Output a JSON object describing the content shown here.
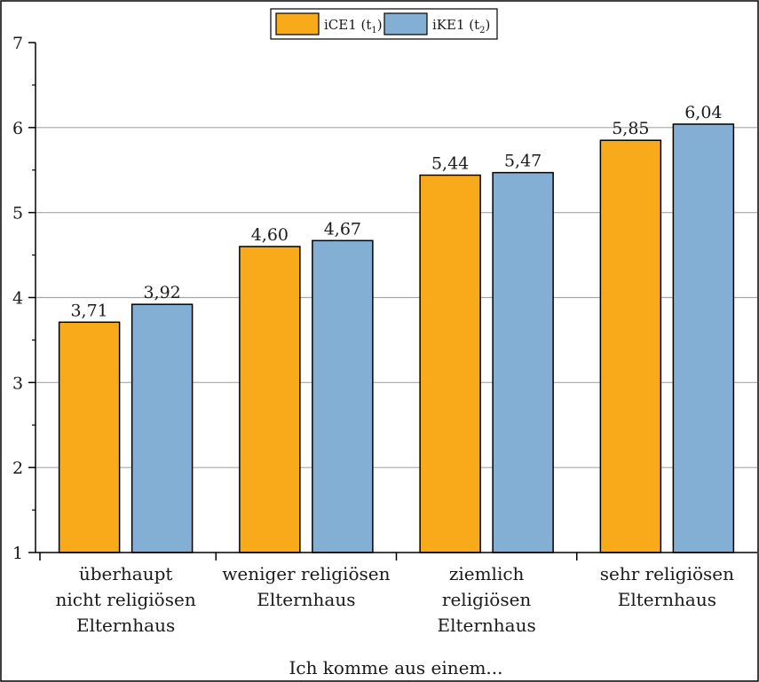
{
  "chart_data": {
    "type": "bar",
    "categories": [
      [
        "überhaupt",
        "nicht religiösen",
        "Elternhaus"
      ],
      [
        "weniger religiösen",
        "Elternhaus"
      ],
      [
        "ziemlich",
        "religiösen",
        "Elternhaus"
      ],
      [
        "sehr religiösen",
        "Elternhaus"
      ]
    ],
    "series": [
      {
        "name": "iCE1 (t1)",
        "name_main": "iCE1 (t",
        "name_sub": "1",
        "name_close": ")",
        "color": "#F8AA1A",
        "values": [
          3.71,
          4.6,
          5.44,
          5.85
        ],
        "labels": [
          "3,71",
          "4,60",
          "5,44",
          "5,85"
        ]
      },
      {
        "name": "iKE1 (t2)",
        "name_main": "iKE1 (t",
        "name_sub": "2",
        "name_close": ")",
        "color": "#82AFD3",
        "values": [
          3.92,
          4.67,
          5.47,
          6.04
        ],
        "labels": [
          "3,92",
          "4,67",
          "5,47",
          "6,04"
        ]
      }
    ],
    "title": "",
    "xlabel": "Ich komme aus einem...",
    "ylabel": "",
    "ylim": [
      1,
      7
    ],
    "yticks": [
      1,
      2,
      3,
      4,
      5,
      6,
      7
    ],
    "grid": true,
    "legend_position": "top-center"
  }
}
